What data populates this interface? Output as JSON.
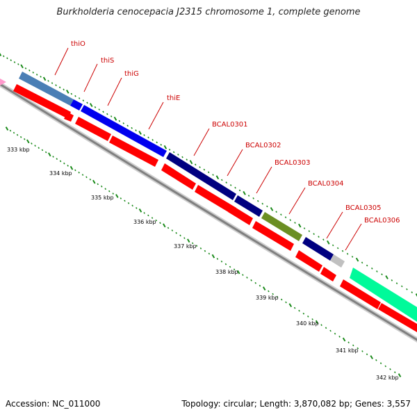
{
  "title": "Burkholderia cenocepacia J2315 chromosome 1, complete genome",
  "accession": "Accession: NC_011000",
  "summary": "Topology: circular; Length: 3,870,082 bp; Genes: 3,557",
  "colors": {
    "backbone": "#8a8a8a",
    "forward_tick": "#1a8a1a",
    "reverse_tick": "#1a8a1a",
    "label": "#cc0000",
    "cds": "#ff0000"
  },
  "scale_labels": [
    "333 kbp",
    "334 kbp",
    "335 kbp",
    "336 kbp",
    "337 kbp",
    "338 kbp",
    "339 kbp",
    "340 kbp",
    "341 kbp",
    "342 kbp"
  ],
  "gene_labels": [
    "thiO",
    "thiS",
    "thiG",
    "thiE",
    "BCAL0301",
    "BCAL0302",
    "BCAL0303",
    "BCAL0304",
    "BCAL0305",
    "BCAL0306"
  ],
  "gene_feature_colors": [
    "#4a7fb5",
    "#0000ee",
    "#0000ee",
    "#000080",
    "#000080",
    "#6b8e23",
    "#000080",
    "#c0c0c0",
    "#00fa9a"
  ]
}
